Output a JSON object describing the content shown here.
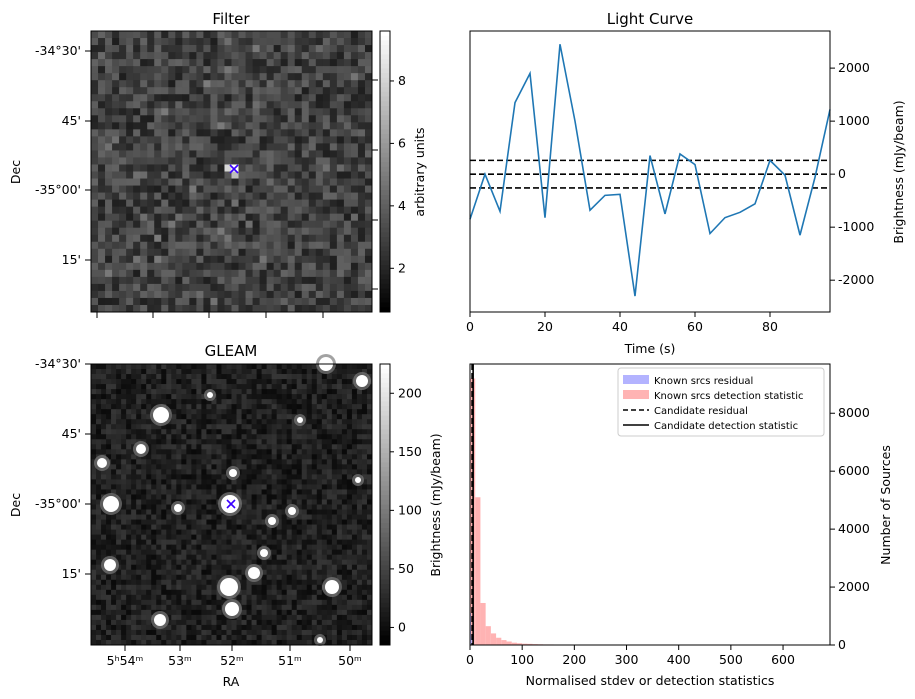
{
  "chart_data": [
    {
      "type": "heatmap",
      "panel": "filter",
      "title": "Filter",
      "ylabel": "Dec",
      "colorbar_label": "arbitrary units",
      "colorbar_ticks": [
        "2",
        "4",
        "6",
        "8"
      ],
      "colorbar_range": [
        0.6,
        9.6
      ],
      "dec_ticks": [
        "-34°30'",
        "45'",
        "-35°00'",
        "15'"
      ],
      "marker": "x",
      "marker_color": "#3a00ff"
    },
    {
      "type": "line",
      "panel": "lightcurve",
      "title": "Light Curve",
      "xlabel": "Time (s)",
      "ylabel": "Brightness (mJy/beam)",
      "xlim": [
        0,
        96
      ],
      "ylim": [
        -2600,
        2700
      ],
      "x_ticks": [
        0,
        20,
        40,
        60,
        80
      ],
      "y_ticks": [
        -2000,
        -1000,
        0,
        1000,
        2000
      ],
      "series": [
        {
          "color": "#1f77b4",
          "x": [
            0,
            4,
            8,
            12,
            16,
            20,
            24,
            28,
            32,
            36,
            40,
            44,
            48,
            52,
            56,
            60,
            64,
            68,
            72,
            76,
            80,
            84,
            88,
            92,
            96
          ],
          "y": [
            -850,
            0,
            -700,
            1350,
            1900,
            -820,
            2450,
            1000,
            -680,
            -400,
            -380,
            -2300,
            350,
            -750,
            380,
            180,
            -1120,
            -820,
            -720,
            -560,
            260,
            -20,
            -1150,
            -60,
            1220
          ]
        }
      ],
      "hlines": [
        {
          "y": 0,
          "style": "dashed"
        },
        {
          "y": 260,
          "style": "dashed"
        },
        {
          "y": -260,
          "style": "dashed"
        }
      ]
    },
    {
      "type": "heatmap",
      "panel": "gleam",
      "title": "GLEAM",
      "xlabel": "RA",
      "ylabel": "Dec",
      "colorbar_label": "Brightness (mJy/beam)",
      "colorbar_ticks": [
        "0",
        "50",
        "100",
        "150",
        "200"
      ],
      "colorbar_range": [
        -15,
        225
      ],
      "dec_ticks": [
        "-34°30'",
        "45'",
        "-35°00'",
        "15'"
      ],
      "ra_ticks": [
        "5ʰ54ᵐ",
        "53ᵐ",
        "52ᵐ",
        "51ᵐ",
        "50ᵐ"
      ],
      "marker": "x",
      "marker_color": "#3a00ff"
    },
    {
      "type": "bar",
      "panel": "histogram",
      "xlabel": "Normalised stdev or detection statistics",
      "ylabel": "Number of Sources",
      "xlim": [
        0,
        690
      ],
      "ylim": [
        0,
        9700
      ],
      "x_ticks": [
        0,
        100,
        200,
        300,
        400,
        500,
        600
      ],
      "y_ticks": [
        0,
        2000,
        4000,
        6000,
        8000
      ],
      "legend_position": "upper right",
      "legend": [
        {
          "label": "Known srcs residual",
          "kind": "patch",
          "color": "#b3b3ff"
        },
        {
          "label": "Known srcs detection statistic",
          "kind": "patch",
          "color": "#ffb3b3"
        },
        {
          "label": "Candidate residual",
          "kind": "dashed",
          "color": "#000000"
        },
        {
          "label": "Candidate detection statistic",
          "kind": "solid",
          "color": "#000000"
        }
      ],
      "bin_width": 10,
      "detection_counts": [
        9200,
        5100,
        1450,
        650,
        400,
        250,
        170,
        120,
        80,
        60,
        45,
        40,
        30,
        25,
        20,
        20,
        15,
        12,
        10,
        10,
        8,
        8,
        6,
        6,
        5,
        5,
        5,
        5,
        4,
        4,
        4,
        4,
        3,
        3,
        3,
        3,
        3,
        3,
        3,
        3,
        3,
        3,
        2,
        2,
        2,
        2,
        2,
        2,
        2,
        2,
        2,
        2,
        2,
        2,
        2,
        2,
        2,
        2,
        2,
        2,
        2,
        2,
        2,
        2,
        2,
        2
      ],
      "residual_counts": [
        1100,
        250,
        60,
        15,
        6,
        3,
        2,
        1
      ],
      "candidate_residual": 4,
      "candidate_detection": 6
    }
  ]
}
